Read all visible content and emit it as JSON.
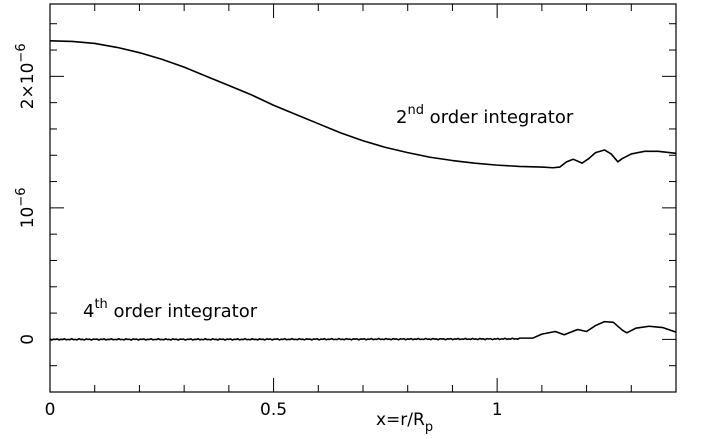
{
  "chart_data": {
    "type": "line",
    "xlabel": {
      "base": "x=r/R",
      "sub": "p"
    },
    "ylabel": "",
    "xlim": [
      0,
      1.4
    ],
    "ylim": [
      -4e-07,
      2.55e-06
    ],
    "x_ticks": [
      {
        "value": 0,
        "label": "0"
      },
      {
        "value": 0.5,
        "label": "0.5"
      },
      {
        "value": 1,
        "label": "1"
      }
    ],
    "y_ticks": [
      {
        "value": 0,
        "label": "0",
        "base": "",
        "exp": ""
      },
      {
        "value": 1e-06,
        "label": "",
        "base": "10",
        "exp": "−6"
      },
      {
        "value": 2e-06,
        "label": "",
        "base": "2×10",
        "exp": "−6"
      }
    ],
    "x_minor_step": 0.1,
    "y_minor_step": 2e-07,
    "grid": false,
    "series": [
      {
        "name": "2nd order integrator",
        "label_parts": {
          "pre": "2",
          "sup": "nd",
          "post": " order integrator"
        },
        "points": [
          [
            0.0,
            2.27e-06
          ],
          [
            0.05,
            2.265e-06
          ],
          [
            0.1,
            2.25e-06
          ],
          [
            0.15,
            2.22e-06
          ],
          [
            0.2,
            2.18e-06
          ],
          [
            0.25,
            2.13e-06
          ],
          [
            0.3,
            2.07e-06
          ],
          [
            0.35,
            2e-06
          ],
          [
            0.4,
            1.93e-06
          ],
          [
            0.45,
            1.86e-06
          ],
          [
            0.5,
            1.78e-06
          ],
          [
            0.55,
            1.71e-06
          ],
          [
            0.6,
            1.64e-06
          ],
          [
            0.65,
            1.57e-06
          ],
          [
            0.7,
            1.51e-06
          ],
          [
            0.75,
            1.46e-06
          ],
          [
            0.8,
            1.42e-06
          ],
          [
            0.85,
            1.385e-06
          ],
          [
            0.9,
            1.36e-06
          ],
          [
            0.95,
            1.34e-06
          ],
          [
            1.0,
            1.325e-06
          ],
          [
            1.05,
            1.315e-06
          ],
          [
            1.1,
            1.31e-06
          ],
          [
            1.125,
            1.305e-06
          ],
          [
            1.14,
            1.31e-06
          ],
          [
            1.155,
            1.35e-06
          ],
          [
            1.17,
            1.37e-06
          ],
          [
            1.19,
            1.34e-06
          ],
          [
            1.205,
            1.375e-06
          ],
          [
            1.22,
            1.42e-06
          ],
          [
            1.24,
            1.44e-06
          ],
          [
            1.255,
            1.41e-06
          ],
          [
            1.27,
            1.35e-06
          ],
          [
            1.28,
            1.375e-06
          ],
          [
            1.3,
            1.41e-06
          ],
          [
            1.33,
            1.43e-06
          ],
          [
            1.36,
            1.43e-06
          ],
          [
            1.4,
            1.415e-06
          ]
        ]
      },
      {
        "name": "4th order integrator",
        "label_parts": {
          "pre": "4",
          "sup": "th",
          "post": " order integrator"
        },
        "points": [
          [
            0.0,
            0.0
          ],
          [
            0.2,
            0.0
          ],
          [
            0.4,
            0.0
          ],
          [
            0.6,
            1e-09
          ],
          [
            0.8,
            2e-09
          ],
          [
            1.0,
            3e-09
          ],
          [
            1.05,
            5e-09
          ],
          [
            1.08,
            1e-08
          ],
          [
            1.1,
            4e-08
          ],
          [
            1.13,
            6e-08
          ],
          [
            1.15,
            3.5e-08
          ],
          [
            1.165,
            5.5e-08
          ],
          [
            1.18,
            7.5e-08
          ],
          [
            1.2,
            6e-08
          ],
          [
            1.22,
            1.05e-07
          ],
          [
            1.24,
            1.35e-07
          ],
          [
            1.26,
            1.3e-07
          ],
          [
            1.28,
            7e-08
          ],
          [
            1.29,
            5e-08
          ],
          [
            1.31,
            8.5e-08
          ],
          [
            1.34,
            1e-07
          ],
          [
            1.37,
            9e-08
          ],
          [
            1.4,
            5.5e-08
          ]
        ],
        "noise_region": [
          0.0,
          1.05
        ]
      }
    ]
  }
}
